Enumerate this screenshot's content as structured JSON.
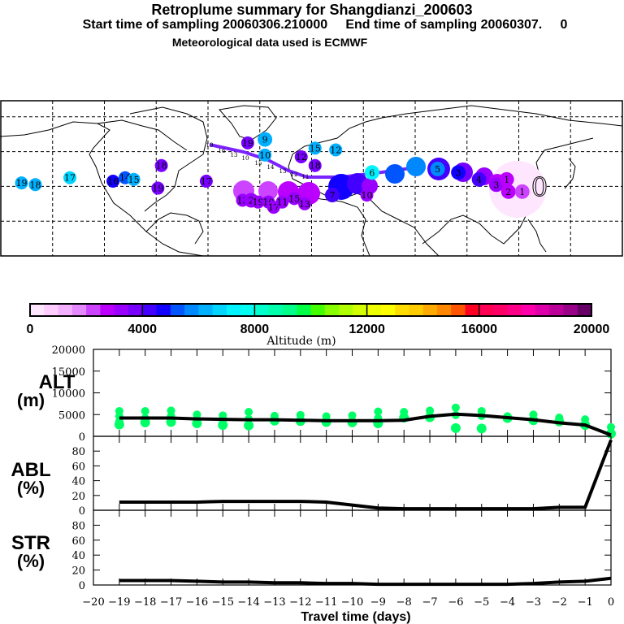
{
  "header": {
    "title": "Retroplume summary for Shangdianzi_200603",
    "line2_start": "Start time of sampling 20060306.210000",
    "line2_end": "End time of sampling 20060307.     0",
    "line3": "Meteorological data used is ECMWF"
  },
  "map": {
    "description": "Retroplume trajectory map, Northern Hemisphere, plume centroid labels = days back",
    "labels": [
      {
        "text": "19",
        "lon": -168,
        "lat": 42,
        "alt": 6000
      },
      {
        "text": "18",
        "lon": -160,
        "lat": 41,
        "alt": 6000
      },
      {
        "text": "17",
        "lon": -140,
        "lat": 45,
        "alt": 6500
      },
      {
        "text": "16",
        "lon": -115,
        "lat": 43,
        "alt": 4600
      },
      {
        "text": "14",
        "lon": -108,
        "lat": 45,
        "alt": 5200
      },
      {
        "text": "15",
        "lon": -103,
        "lat": 44,
        "alt": 6000
      },
      {
        "text": "18",
        "lon": -87,
        "lat": 52,
        "alt": 3600
      },
      {
        "text": "19",
        "lon": -89,
        "lat": 39,
        "alt": 3600
      },
      {
        "text": "17",
        "lon": -61,
        "lat": 43,
        "alt": 3600
      },
      {
        "text": "19",
        "lon": -37,
        "lat": 65,
        "alt": 3600
      },
      {
        "text": "9",
        "lon": -27,
        "lat": 67,
        "alt": 6000
      },
      {
        "text": "10",
        "lon": -27,
        "lat": 58,
        "alt": 6000
      },
      {
        "text": "13",
        "lon": -40,
        "lat": 32,
        "alt": 3000
      },
      {
        "text": "2",
        "lon": -35,
        "lat": 32,
        "alt": 3000
      },
      {
        "text": "19",
        "lon": -31,
        "lat": 31,
        "alt": 3000
      },
      {
        "text": "10",
        "lon": -25,
        "lat": 31,
        "alt": 3000
      },
      {
        "text": "17",
        "lon": -22,
        "lat": 28,
        "alt": 3000
      },
      {
        "text": "11",
        "lon": -17,
        "lat": 31,
        "alt": 3000
      },
      {
        "text": "15",
        "lon": -10,
        "lat": 33,
        "alt": 3200
      },
      {
        "text": "13",
        "lon": -4,
        "lat": 30,
        "alt": 3200
      },
      {
        "text": "15",
        "lon": 2,
        "lat": 62,
        "alt": 6000
      },
      {
        "text": "12",
        "lon": -6,
        "lat": 57,
        "alt": 3600
      },
      {
        "text": "18",
        "lon": 2,
        "lat": 52,
        "alt": 3600
      },
      {
        "text": "12",
        "lon": 14,
        "lat": 61,
        "alt": 6000
      },
      {
        "text": "6",
        "lon": 35,
        "lat": 48,
        "alt": 7000
      },
      {
        "text": "7",
        "lon": 12,
        "lat": 35,
        "alt": 4400
      },
      {
        "text": "10",
        "lon": 32,
        "lat": 35,
        "alt": 3200
      },
      {
        "text": "5",
        "lon": 73,
        "lat": 50,
        "alt": 5600
      },
      {
        "text": "3",
        "lon": 85,
        "lat": 48,
        "alt": 4800
      },
      {
        "text": "4",
        "lon": 97,
        "lat": 44,
        "alt": 4200
      },
      {
        "text": "3",
        "lon": 107,
        "lat": 41,
        "alt": 3400
      },
      {
        "text": "2",
        "lon": 114,
        "lat": 37,
        "alt": 2800
      },
      {
        "text": "1",
        "lon": 113,
        "lat": 44,
        "alt": 2800
      },
      {
        "text": "1",
        "lon": 122,
        "lat": 37,
        "alt": 2400
      },
      {
        "text": "0",
        "lon": 132,
        "lat": 40,
        "alt": 400
      }
    ],
    "track_labels": [
      "19",
      "16",
      "13",
      "10",
      "15",
      "14",
      "13",
      "12",
      "11"
    ]
  },
  "colorbar": {
    "label": "Altitude (m)",
    "ticks": [
      "0",
      "4000",
      "8000",
      "12000",
      "16000",
      "20000"
    ],
    "colors": [
      "#ffe6ff",
      "#ffccff",
      "#f3b0ff",
      "#e388ff",
      "#cc44ff",
      "#bb00ff",
      "#9900ff",
      "#7700ff",
      "#4400ff",
      "#1100ff",
      "#0055ff",
      "#0088ff",
      "#00b0ff",
      "#00d4ff",
      "#00f4ff",
      "#00fff0",
      "#00ffcc",
      "#00ffaa",
      "#00ff88",
      "#00ff44",
      "#44ff00",
      "#88ff00",
      "#b0ff00",
      "#d4ff00",
      "#eeff00",
      "#ffff00",
      "#ffdd00",
      "#ffcc00",
      "#ffaa00",
      "#ff8800",
      "#ff5500",
      "#ff0022",
      "#ff0055",
      "#ff0066",
      "#ff0088",
      "#ff00aa",
      "#dd00aa",
      "#bb0099",
      "#990088",
      "#660066"
    ]
  },
  "chart_data": [
    {
      "type": "line",
      "title": "ALT",
      "ylabel": "ALT (m)",
      "xlabel": "Travel time (days)",
      "x": [
        -19,
        -18,
        -17,
        -16,
        -15,
        -14,
        -13,
        -12,
        -11,
        -10,
        -9,
        -8,
        -7,
        -6,
        -5,
        -4,
        -3,
        -2,
        -1,
        0
      ],
      "series": [
        {
          "name": "mean altitude",
          "values": [
            4200,
            4200,
            4200,
            4000,
            3900,
            3800,
            3800,
            3700,
            3600,
            3600,
            3600,
            3700,
            4600,
            5100,
            4800,
            4300,
            3800,
            3100,
            2600,
            300
          ]
        }
      ],
      "scatter_altitudes": [
        [
          5800,
          4600,
          3400,
          2700
        ],
        [
          5800,
          4200,
          3200
        ],
        [
          5900,
          4700,
          3300
        ],
        [
          5000,
          4000,
          3000
        ],
        [
          4800,
          3800,
          2600
        ],
        [
          5600,
          4000,
          2500
        ],
        [
          4700,
          3600
        ],
        [
          4900,
          3500
        ],
        [
          4600,
          3300
        ],
        [
          4800,
          3200
        ],
        [
          5700,
          4200,
          3000
        ],
        [
          5600,
          4300
        ],
        [
          5900,
          4400
        ],
        [
          6600,
          4900,
          1900
        ],
        [
          5800,
          4700,
          1800
        ],
        [
          4600,
          4200
        ],
        [
          5000,
          3700
        ],
        [
          4300,
          3400
        ],
        [
          3900,
          2600
        ],
        [
          2100,
          600
        ]
      ],
      "ylim": [
        0,
        20000
      ],
      "yticks": [
        "0",
        "5000",
        "10000",
        "15000",
        "20000"
      ]
    },
    {
      "type": "line",
      "title": "ABL",
      "ylabel": "ABL (%)",
      "xlabel": "Travel time (days)",
      "x": [
        -19,
        -18,
        -17,
        -16,
        -15,
        -14,
        -13,
        -12,
        -11,
        -10,
        -9,
        -8,
        -7,
        -6,
        -5,
        -4,
        -3,
        -2,
        -1,
        0
      ],
      "series": [
        {
          "name": "ABL fraction",
          "values": [
            11,
            11,
            11,
            11,
            12,
            12,
            12,
            12,
            11,
            7,
            3,
            2,
            2,
            2,
            2,
            2,
            2,
            4,
            4,
            95
          ]
        }
      ],
      "ylim": [
        0,
        100
      ],
      "yticks": [
        "0",
        "20",
        "40",
        "60",
        "80"
      ]
    },
    {
      "type": "line",
      "title": "STR",
      "ylabel": "STR (%)",
      "xlabel": "Travel time (days)",
      "x": [
        -19,
        -18,
        -17,
        -16,
        -15,
        -14,
        -13,
        -12,
        -11,
        -10,
        -9,
        -8,
        -7,
        -6,
        -5,
        -4,
        -3,
        -2,
        -1,
        0
      ],
      "series": [
        {
          "name": "stratospheric fraction",
          "values": [
            6,
            6,
            6,
            5,
            4,
            4,
            3,
            3,
            2,
            2,
            1,
            1,
            1,
            1,
            1,
            1,
            2,
            4,
            5,
            9
          ]
        }
      ],
      "ylim": [
        0,
        100
      ],
      "yticks": [
        "0",
        "20",
        "40",
        "60",
        "80"
      ]
    }
  ],
  "xaxis": {
    "ticks": [
      "-20",
      "-19",
      "-18",
      "-17",
      "-16",
      "-15",
      "-14",
      "-13",
      "-12",
      "-11",
      "-10",
      "-9",
      "-8",
      "-7",
      "-6",
      "-5",
      "-4",
      "-3",
      "-2",
      "-1",
      "0"
    ],
    "label": "Travel time (days)"
  },
  "panel_labels": {
    "alt_top": "ALT",
    "alt_bottom": "(m)",
    "abl_top": "ABL",
    "abl_bottom": "(%)",
    "str_top": "STR",
    "str_bottom": "(%)"
  },
  "colors": {
    "scatter": "#00ff66",
    "line": "#000000"
  }
}
